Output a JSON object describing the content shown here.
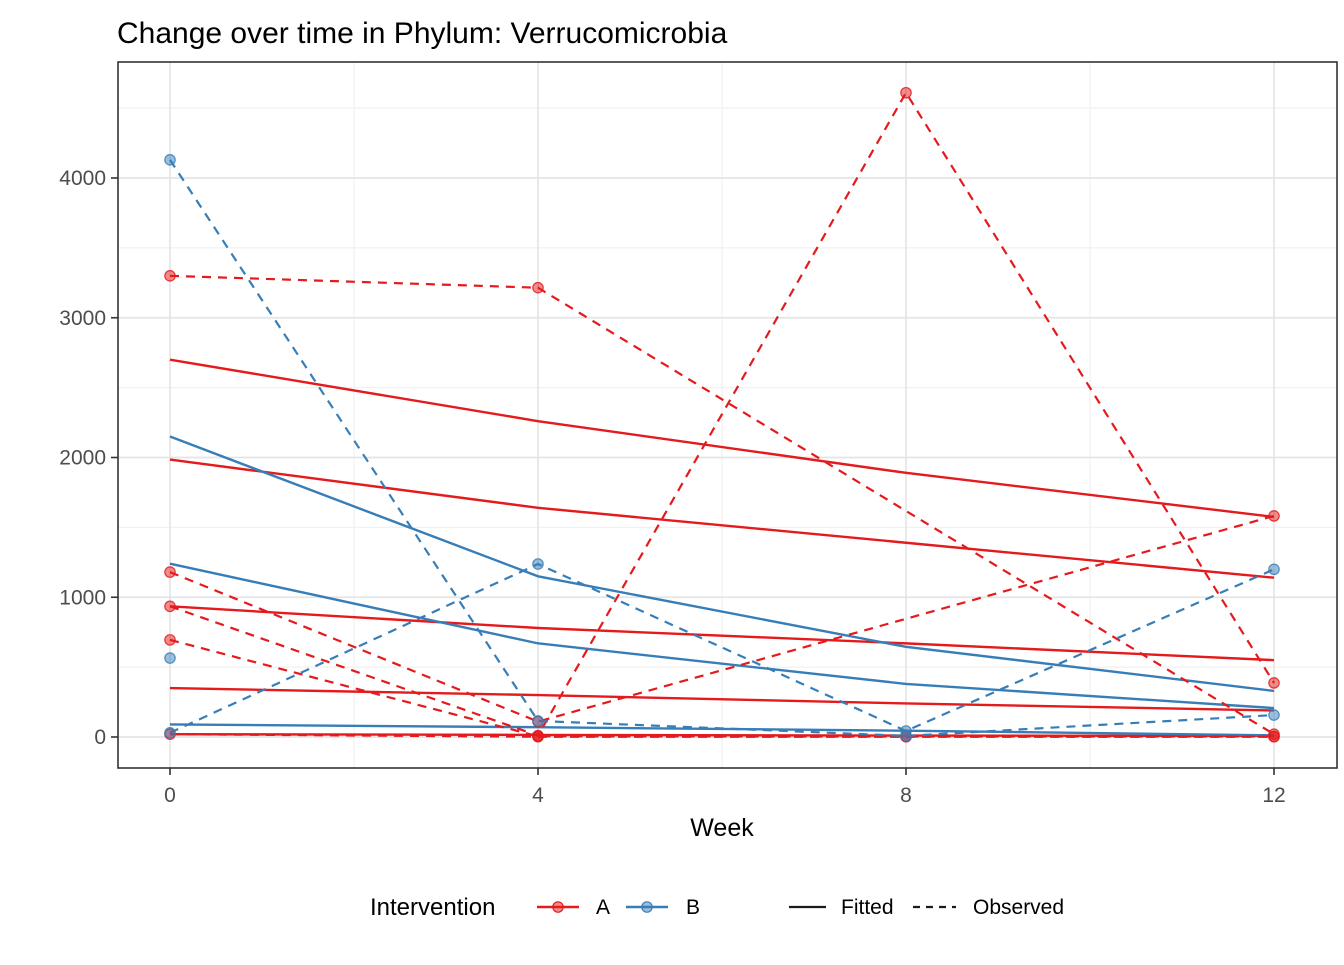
{
  "chart_data": {
    "type": "line",
    "title": "Change over time in Phylum: Verrucomicrobia",
    "xlabel": "Week",
    "ylabel": "",
    "x_ticks": [
      0,
      4,
      8,
      12
    ],
    "x_minor": [
      2,
      6,
      10
    ],
    "y_ticks": [
      0,
      1000,
      2000,
      3000,
      4000
    ],
    "y_minor": [
      500,
      1500,
      2500,
      3500,
      4500
    ],
    "xlim": [
      -0.57,
      12.68
    ],
    "ylim": [
      -222,
      4830
    ],
    "grid": "on",
    "legend": {
      "title": "Intervention",
      "position": "bottom",
      "groups": [
        {
          "label": "A",
          "color": "#E41A1C"
        },
        {
          "label": "B",
          "color": "#377EB8"
        }
      ],
      "linetypes": [
        {
          "label": "Fitted",
          "style": "solid"
        },
        {
          "label": "Observed",
          "style": "dashed"
        }
      ]
    },
    "series": [
      {
        "id": "A-fitted-1",
        "group": "A",
        "kind": "fitted",
        "points": [
          [
            0,
            2700
          ],
          [
            4,
            2260
          ],
          [
            8,
            1890
          ],
          [
            12,
            1575
          ]
        ]
      },
      {
        "id": "A-fitted-2",
        "group": "A",
        "kind": "fitted",
        "points": [
          [
            0,
            1985
          ],
          [
            4,
            1640
          ],
          [
            8,
            1390
          ],
          [
            12,
            1140
          ]
        ]
      },
      {
        "id": "A-fitted-3",
        "group": "A",
        "kind": "fitted",
        "points": [
          [
            0,
            935
          ],
          [
            4,
            780
          ],
          [
            8,
            670
          ],
          [
            12,
            550
          ]
        ]
      },
      {
        "id": "A-fitted-4",
        "group": "A",
        "kind": "fitted",
        "points": [
          [
            0,
            350
          ],
          [
            4,
            300
          ],
          [
            8,
            240
          ],
          [
            12,
            190
          ]
        ]
      },
      {
        "id": "A-fitted-5",
        "group": "A",
        "kind": "fitted",
        "points": [
          [
            0,
            20
          ],
          [
            4,
            15
          ],
          [
            8,
            10
          ],
          [
            12,
            8
          ]
        ]
      },
      {
        "id": "B-fitted-1",
        "group": "B",
        "kind": "fitted",
        "points": [
          [
            0,
            2150
          ],
          [
            4,
            1150
          ],
          [
            8,
            645
          ],
          [
            12,
            330
          ]
        ]
      },
      {
        "id": "B-fitted-2",
        "group": "B",
        "kind": "fitted",
        "points": [
          [
            0,
            1240
          ],
          [
            4,
            670
          ],
          [
            8,
            380
          ],
          [
            12,
            207
          ]
        ]
      },
      {
        "id": "B-fitted-3",
        "group": "B",
        "kind": "fitted",
        "points": [
          [
            0,
            90
          ],
          [
            4,
            70
          ],
          [
            8,
            45
          ],
          [
            12,
            12
          ]
        ]
      },
      {
        "id": "A-observed-1",
        "group": "A",
        "kind": "observed",
        "points": [
          [
            0,
            3300
          ],
          [
            4,
            3215
          ],
          [
            12,
            20
          ]
        ]
      },
      {
        "id": "A-observed-2",
        "group": "A",
        "kind": "observed",
        "points": [
          [
            0,
            1180
          ],
          [
            4,
            110
          ],
          [
            12,
            1582
          ]
        ]
      },
      {
        "id": "A-observed-3",
        "group": "A",
        "kind": "observed",
        "points": [
          [
            0,
            935
          ],
          [
            4,
            10
          ],
          [
            8,
            4610
          ],
          [
            12,
            387
          ]
        ]
      },
      {
        "id": "A-observed-4",
        "group": "A",
        "kind": "observed",
        "points": [
          [
            0,
            695
          ],
          [
            4,
            5
          ],
          [
            8,
            3
          ],
          [
            12,
            3
          ]
        ]
      },
      {
        "id": "A-observed-5",
        "group": "A",
        "kind": "observed",
        "points": [
          [
            0,
            20
          ],
          [
            4,
            2
          ],
          [
            8,
            2
          ],
          [
            12,
            2
          ]
        ]
      },
      {
        "id": "B-observed-1",
        "group": "B",
        "kind": "observed",
        "points": [
          [
            0,
            4130
          ],
          [
            4,
            115
          ],
          [
            8,
            8
          ],
          [
            12,
            157
          ]
        ]
      },
      {
        "id": "B-observed-2",
        "group": "B",
        "kind": "observed",
        "points": [
          [
            0,
            30
          ],
          [
            4,
            1238
          ],
          [
            8,
            43
          ],
          [
            12,
            1200
          ]
        ]
      },
      {
        "id": "B-observed-3",
        "group": "B",
        "kind": "observed",
        "points": [
          [
            0,
            565
          ]
        ]
      }
    ]
  }
}
